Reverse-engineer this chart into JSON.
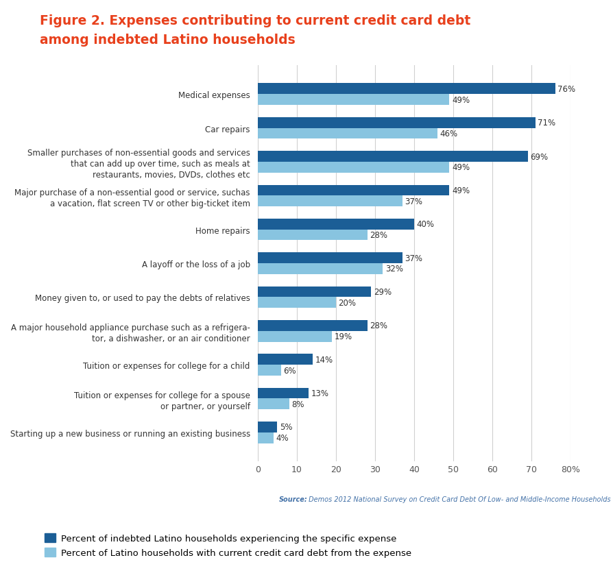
{
  "title_line1": "Figure 2. Expenses contributing to current credit card debt",
  "title_line2": "among indebted Latino households",
  "title_color": "#e8401c",
  "categories": [
    "Medical expenses",
    "Car repairs",
    "Smaller purchases of non-essential goods and services\nthat can add up over time, such as meals at\nrestaurants, movies, DVDs, clothes etc",
    "Major purchase of a non-essential good or service, suchas\na vacation, flat screen TV or other big-ticket item",
    "Home repairs",
    "A layoff or the loss of a job",
    "Money given to, or used to pay the debts of relatives",
    "A major household appliance purchase such as a refrigera-\ntor, a dishwasher, or an air conditioner",
    "Tuition or expenses for college for a child",
    "Tuition or expenses for college for a spouse\nor partner, or yourself",
    "Starting up a new business or running an existing business"
  ],
  "dark_blue_values": [
    76,
    71,
    69,
    49,
    40,
    37,
    29,
    28,
    14,
    13,
    5
  ],
  "light_blue_values": [
    49,
    46,
    49,
    37,
    28,
    32,
    20,
    19,
    6,
    8,
    4
  ],
  "dark_blue_color": "#1b5e96",
  "light_blue_color": "#88c4e0",
  "bar_height": 0.32,
  "xlim": [
    0,
    80
  ],
  "xticks": [
    0,
    10,
    20,
    30,
    40,
    50,
    60,
    70,
    80
  ],
  "xticklabels": [
    "0",
    "10",
    "20",
    "30",
    "40",
    "50",
    "60",
    "70",
    "80%"
  ],
  "legend_dark_label": "Percent of indebted Latino households experiencing the specific expense",
  "legend_light_label": "Percent of Latino households with current credit card debt from the expense",
  "source_text_bold": "Source:",
  "source_text_normal": " Demos 2012 National Survey on Credit Card Debt Of Low- and Middle-Income Households",
  "background_color": "#ffffff",
  "grid_color": "#d0d0d0"
}
